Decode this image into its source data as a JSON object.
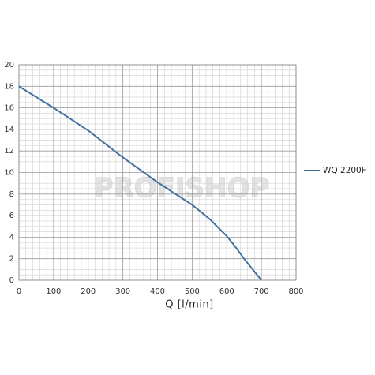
{
  "chart_data": {
    "type": "line",
    "x_label": "Q [l/min]",
    "watermark": "PROFISHOP",
    "x": [
      0,
      100,
      200,
      300,
      400,
      500,
      550,
      600,
      625,
      650,
      700
    ],
    "series": [
      {
        "name": "WQ 2200F",
        "color": "#41709c",
        "values": [
          18,
          16,
          13.9,
          11.4,
          9.1,
          7,
          5.7,
          4.1,
          3.1,
          2,
          0
        ]
      }
    ],
    "xlim": [
      0,
      800
    ],
    "xticks": [
      0,
      100,
      200,
      300,
      400,
      500,
      600,
      700,
      800
    ],
    "ylim": [
      0,
      20
    ],
    "yticks": [
      0,
      2,
      4,
      6,
      8,
      10,
      12,
      14,
      16,
      18,
      20
    ],
    "grid": true,
    "minor_grid": true,
    "legend": "right"
  }
}
